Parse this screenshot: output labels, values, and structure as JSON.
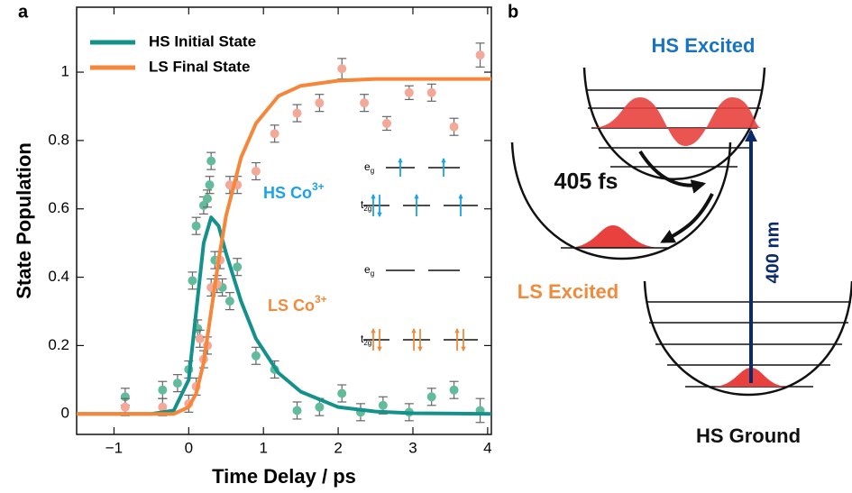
{
  "chart_data": {
    "type": "line",
    "panel_label": "a",
    "x_label": "Time Delay / ps",
    "y_label": "State Population",
    "xlim": [
      -1.5,
      4.05
    ],
    "ylim": [
      -0.06,
      1.19
    ],
    "xticks": [
      {
        "value": -1,
        "label": "−1"
      },
      0,
      1,
      2,
      3,
      4
    ],
    "yticks": [
      0,
      0.2,
      0.4,
      0.6,
      0.8,
      1
    ],
    "legend": "top-left",
    "series": [
      {
        "name": "HS Initial State",
        "color": "#15918c",
        "x": [
          -1.5,
          -0.5,
          -0.2,
          0,
          0.1,
          0.2,
          0.3,
          0.4,
          0.5,
          0.7,
          0.9,
          1.2,
          1.5,
          2,
          2.5,
          3,
          4.05
        ],
        "values": [
          0,
          0,
          0.01,
          0.1,
          0.3,
          0.5,
          0.575,
          0.55,
          0.47,
          0.33,
          0.22,
          0.12,
          0.065,
          0.02,
          0.007,
          0.002,
          0
        ]
      },
      {
        "name": "LS Final State",
        "color": "#f5863a",
        "x": [
          -1.5,
          -0.5,
          -0.2,
          0,
          0.1,
          0.2,
          0.3,
          0.4,
          0.5,
          0.7,
          0.9,
          1.2,
          1.5,
          2,
          2.5,
          3,
          4.05
        ],
        "values": [
          0,
          0,
          0,
          0.02,
          0.06,
          0.15,
          0.3,
          0.45,
          0.58,
          0.75,
          0.85,
          0.93,
          0.96,
          0.975,
          0.98,
          0.98,
          0.98
        ]
      },
      {
        "marker": true,
        "color": "#62bc9c",
        "x": [
          -0.85,
          -0.35,
          -0.15,
          0,
          0.05,
          0.1,
          0.12,
          0.2,
          0.25,
          0.28,
          0.3,
          0.35,
          0.45,
          0.55,
          0.65,
          0.9,
          1.15,
          1.45,
          1.75,
          2.05,
          2.3,
          2.6,
          2.95,
          3.25,
          3.55,
          3.9
        ],
        "values": [
          0.05,
          0.07,
          0.09,
          0.13,
          0.39,
          0.55,
          0.25,
          0.61,
          0.63,
          0.67,
          0.74,
          0.45,
          0.37,
          0.33,
          0.43,
          0.17,
          0.13,
          0.01,
          0.02,
          0.06,
          0.005,
          0.025,
          0.005,
          0.05,
          0.07,
          0.01
        ],
        "errors": [
          0.025,
          0.025,
          0.025,
          0.025,
          0.025,
          0.025,
          0.025,
          0.025,
          0.025,
          0.025,
          0.025,
          0.025,
          0.025,
          0.025,
          0.025,
          0.025,
          0.025,
          0.025,
          0.025,
          0.025,
          0.025,
          0.025,
          0.025,
          0.025,
          0.025,
          0.035
        ]
      },
      {
        "marker": true,
        "color": "#f4a898",
        "x": [
          -0.85,
          -0.35,
          0,
          0.1,
          0.15,
          0.2,
          0.25,
          0.3,
          0.38,
          0.42,
          0.55,
          0.65,
          0.9,
          1.15,
          1.45,
          1.75,
          2.05,
          2.35,
          2.65,
          2.95,
          3.25,
          3.55,
          3.9
        ],
        "values": [
          0.02,
          0.02,
          0.03,
          0.08,
          0.22,
          0.16,
          0.2,
          0.37,
          0.38,
          0.45,
          0.67,
          0.67,
          0.71,
          0.82,
          0.88,
          0.91,
          1.01,
          0.91,
          0.85,
          0.94,
          0.94,
          0.84,
          1.05
        ],
        "errors": [
          0.025,
          0.025,
          0.025,
          0.025,
          0.025,
          0.025,
          0.025,
          0.025,
          0.025,
          0.025,
          0.025,
          0.025,
          0.025,
          0.025,
          0.025,
          0.025,
          0.03,
          0.025,
          0.02,
          0.02,
          0.025,
          0.025,
          0.035
        ]
      }
    ],
    "annotations": {
      "hs": {
        "text": "HS Co",
        "sup": "3+",
        "color": "#1aa3e8"
      },
      "ls": {
        "text": "LS Co",
        "sup": "3+",
        "color": "#f08a3c"
      },
      "eg": {
        "text": "e",
        "sub": "g"
      },
      "t2g": {
        "text": "t",
        "sub": "2g"
      }
    }
  },
  "diagram": {
    "panel_label": "b",
    "hs_excited": "HS Excited",
    "time": "405 fs",
    "ls_excited": "LS Excited",
    "wavelength": "400 nm",
    "hs_ground": "HS Ground"
  }
}
